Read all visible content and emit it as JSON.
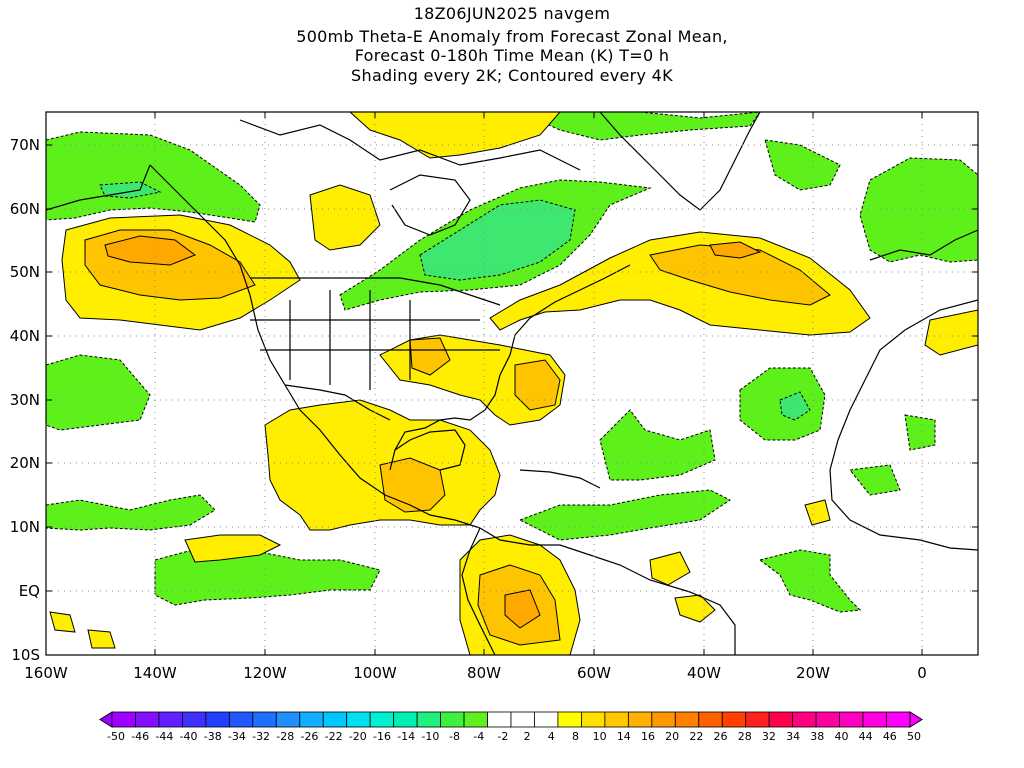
{
  "title": {
    "line1": "18Z06JUN2025 navgem",
    "line2": "500mb Theta-E Anomaly from Forecast Zonal Mean,",
    "line3": "Forecast 0-180h Time Mean (K) T=0 h",
    "line4": "Shading every 2K; Contoured every 4K"
  },
  "axes": {
    "lat_labels": [
      "70N",
      "60N",
      "50N",
      "40N",
      "30N",
      "20N",
      "10N",
      "EQ",
      "10S"
    ],
    "lon_labels": [
      "160W",
      "140W",
      "120W",
      "100W",
      "80W",
      "60W",
      "40W",
      "20W",
      "0"
    ]
  },
  "colorbar": {
    "labels": [
      "-50",
      "-46",
      "-44",
      "-40",
      "-38",
      "-34",
      "-32",
      "-28",
      "-26",
      "-22",
      "-20",
      "-16",
      "-14",
      "-10",
      "-8",
      "-4",
      "-2",
      "2",
      "4",
      "8",
      "10",
      "14",
      "16",
      "20",
      "22",
      "26",
      "28",
      "32",
      "34",
      "38",
      "40",
      "44",
      "46",
      "50"
    ],
    "colors": [
      "#a000ff",
      "#8010ff",
      "#6020ff",
      "#4030ff",
      "#2040ff",
      "#2058ff",
      "#2070ff",
      "#2090ff",
      "#10b0ff",
      "#00c8ff",
      "#00e0f0",
      "#00f0d0",
      "#00f0b0",
      "#20f080",
      "#40f040",
      "#60f020",
      "#ffffff",
      "#ffffff",
      "#ffffff",
      "#ffff00",
      "#ffe000",
      "#ffc800",
      "#ffb000",
      "#ff9800",
      "#ff8000",
      "#ff6000",
      "#ff4000",
      "#ff2020",
      "#ff0050",
      "#ff0080",
      "#ff00a0",
      "#ff00c0",
      "#ff00e0",
      "#ff00ff"
    ]
  },
  "colors": {
    "negative_shade": "#5ef01a",
    "positive_shade": "#ffee00",
    "strong_positive_shade": "#ffc400",
    "stronger_positive_shade": "#ffa800",
    "strong_negative_shade": "#3ee870",
    "coastline": "#000000"
  }
}
